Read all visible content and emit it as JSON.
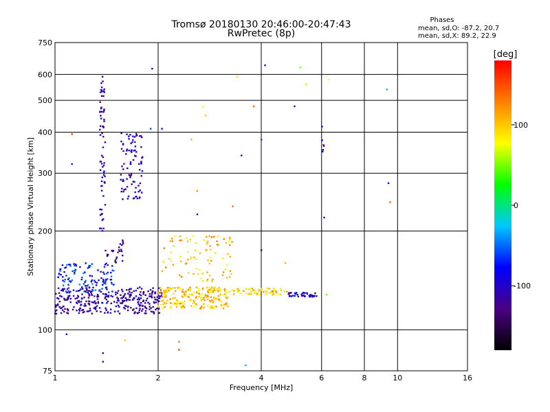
{
  "chart_data": {
    "type": "scatter",
    "title": "Tromsø 20180130 20:46:00-20:47:43",
    "subtitle": "RwPretec (8p)",
    "xlabel": "Frequency [MHz]",
    "ylabel": "Stationary phase Virtual Height [km]",
    "x_scale": "log",
    "y_scale": "log",
    "xlim": [
      1,
      16
    ],
    "ylim": [
      75,
      750
    ],
    "x_ticks": [
      1,
      2,
      4,
      6,
      8,
      10,
      16
    ],
    "y_ticks": [
      75,
      100,
      200,
      300,
      400,
      500,
      600,
      750
    ],
    "grid": true,
    "phases": {
      "heading": "Phases",
      "o_line": "mean, sd,O: -87.2, 20.7",
      "x_line": "mean, sd,X:  89.2, 22.9"
    },
    "colorbar": {
      "label": "[deg]",
      "range": [
        -180,
        180
      ],
      "ticks": [
        100,
        0,
        -100
      ],
      "colors": [
        "#000000",
        "#4b0082",
        "#0000ff",
        "#00c8ff",
        "#00ff00",
        "#ffff00",
        "#ff8000",
        "#ff0000"
      ]
    },
    "series": [
      {
        "clusters": [
          {
            "x": [
              1.0,
              2.05
            ],
            "y": [
              112,
              135
            ],
            "phase": -115,
            "n": 330
          },
          {
            "x": [
              1.02,
              1.5
            ],
            "y": [
              130,
              160
            ],
            "phase": -70,
            "n": 120
          },
          {
            "x": [
              1.35,
              1.4
            ],
            "y": [
              200,
              600
            ],
            "phase": -110,
            "n": 70
          },
          {
            "x": [
              1.55,
              1.8
            ],
            "y": [
              250,
              400
            ],
            "phase": -105,
            "n": 90
          },
          {
            "x": [
              1.4,
              1.6
            ],
            "y": [
              160,
              190
            ],
            "phase": -120,
            "n": 25
          },
          {
            "x": [
              2.0,
              3.2
            ],
            "y": [
              116,
              135
            ],
            "phase": 100,
            "n": 220
          },
          {
            "x": [
              2.05,
              3.3
            ],
            "y": [
              140,
              195
            ],
            "phase": 105,
            "n": 90
          },
          {
            "x": [
              3.2,
              4.8
            ],
            "y": [
              128,
              134
            ],
            "phase": 95,
            "n": 60
          },
          {
            "x": [
              4.8,
              5.8
            ],
            "y": [
              126,
              130
            ],
            "phase": -100,
            "n": 40
          },
          {
            "x": [
              6.0,
              6.1
            ],
            "y": [
              340,
              420
            ],
            "phase": -100,
            "n": 6
          }
        ],
        "points": [
          {
            "x": 1.38,
            "y": 85,
            "phase": -110
          },
          {
            "x": 1.38,
            "y": 80,
            "phase": -110
          },
          {
            "x": 1.08,
            "y": 97,
            "phase": -100
          },
          {
            "x": 1.92,
            "y": 625,
            "phase": -110
          },
          {
            "x": 4.1,
            "y": 640,
            "phase": -100
          },
          {
            "x": 5.2,
            "y": 630,
            "phase": 50
          },
          {
            "x": 5.4,
            "y": 560,
            "phase": 60
          },
          {
            "x": 6.3,
            "y": 580,
            "phase": 80
          },
          {
            "x": 9.3,
            "y": 540,
            "phase": -30
          },
          {
            "x": 9.4,
            "y": 280,
            "phase": -80
          },
          {
            "x": 9.5,
            "y": 245,
            "phase": 140
          },
          {
            "x": 3.4,
            "y": 590,
            "phase": 90
          },
          {
            "x": 3.5,
            "y": 340,
            "phase": -120
          },
          {
            "x": 2.5,
            "y": 380,
            "phase": 110
          },
          {
            "x": 2.6,
            "y": 225,
            "phase": -120
          },
          {
            "x": 2.75,
            "y": 450,
            "phase": 100
          },
          {
            "x": 6.1,
            "y": 220,
            "phase": -100
          },
          {
            "x": 3.8,
            "y": 480,
            "phase": 140
          },
          {
            "x": 4.0,
            "y": 380,
            "phase": -60
          },
          {
            "x": 2.7,
            "y": 478,
            "phase": 80
          },
          {
            "x": 4.0,
            "y": 175,
            "phase": -150
          },
          {
            "x": 5.0,
            "y": 480,
            "phase": -110
          },
          {
            "x": 1.12,
            "y": 395,
            "phase": 160
          },
          {
            "x": 1.12,
            "y": 320,
            "phase": -110
          },
          {
            "x": 1.9,
            "y": 410,
            "phase": -60
          },
          {
            "x": 2.05,
            "y": 410,
            "phase": -110
          },
          {
            "x": 3.3,
            "y": 238,
            "phase": 140
          },
          {
            "x": 2.6,
            "y": 265,
            "phase": 120
          },
          {
            "x": 3.6,
            "y": 78,
            "phase": -30
          },
          {
            "x": 2.3,
            "y": 92,
            "phase": 130
          },
          {
            "x": 2.3,
            "y": 87,
            "phase": 160
          },
          {
            "x": 6.2,
            "y": 128,
            "phase": 50
          },
          {
            "x": 4.7,
            "y": 160,
            "phase": 110
          },
          {
            "x": 1.6,
            "y": 93,
            "phase": 100
          }
        ]
      }
    ]
  }
}
